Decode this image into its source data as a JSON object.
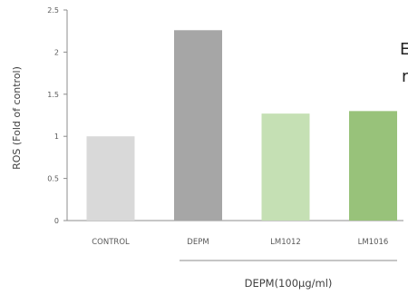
{
  "chart_data": {
    "type": "bar",
    "title": "",
    "xlabel": "",
    "ylabel": "ROS (Fold of control)",
    "ylim": [
      0,
      2.5
    ],
    "yticks": [
      "0",
      "0.5",
      "1",
      "1.5",
      "2",
      "2.5"
    ],
    "categories": [
      "CONTROL",
      "DEPM",
      "LM1012",
      "LM1016"
    ],
    "values": [
      1.0,
      2.26,
      1.27,
      1.3
    ],
    "colors": [
      "#d9d9d9",
      "#a6a6a6",
      "#c5e0b4",
      "#98c27a"
    ],
    "group_label": "DEPM(100μg/ml)",
    "grid": false,
    "legend": "none"
  },
  "edge_text": {
    "line1": "E",
    "line2": "r"
  }
}
